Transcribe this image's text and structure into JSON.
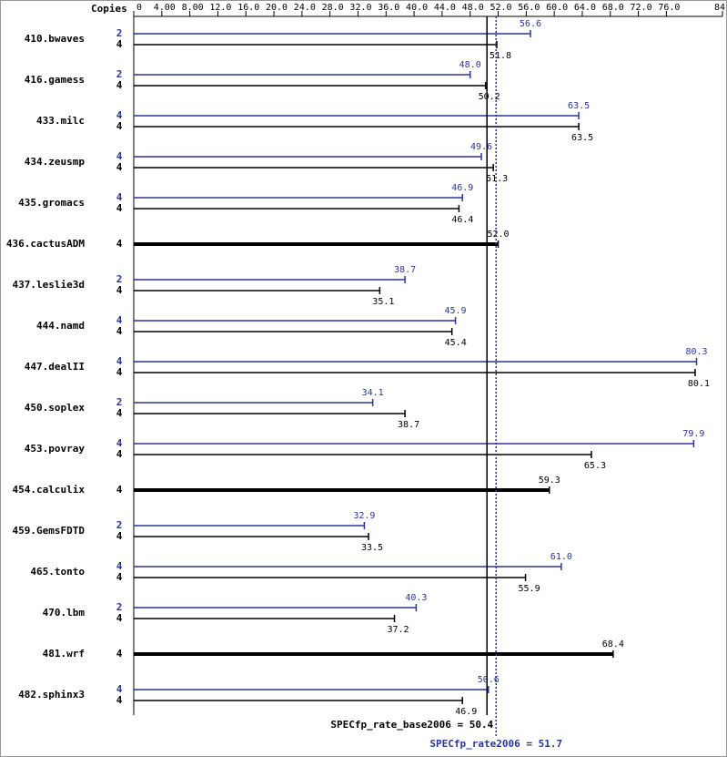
{
  "chart_data": {
    "type": "bar",
    "axis_label": "Copies",
    "xlim": [
      0,
      84
    ],
    "xticks": [
      0,
      {
        "value": 4,
        "label": "4.00"
      },
      {
        "value": 8,
        "label": "8.00"
      },
      {
        "value": 12,
        "label": "12.0"
      },
      {
        "value": 16,
        "label": "16.0"
      },
      {
        "value": 20,
        "label": "20.0"
      },
      {
        "value": 24,
        "label": "24.0"
      },
      {
        "value": 28,
        "label": "28.0"
      },
      {
        "value": 32,
        "label": "32.0"
      },
      {
        "value": 36,
        "label": "36.0"
      },
      {
        "value": 40,
        "label": "40.0"
      },
      {
        "value": 44,
        "label": "44.0"
      },
      {
        "value": 48,
        "label": "48.0"
      },
      {
        "value": 52,
        "label": "52.0"
      },
      {
        "value": 56,
        "label": "56.0"
      },
      {
        "value": 60,
        "label": "60.0"
      },
      {
        "value": 64,
        "label": "64.0"
      },
      {
        "value": 68,
        "label": "68.0"
      },
      {
        "value": 72,
        "label": "72.0"
      },
      {
        "value": 76,
        "label": "76.0"
      },
      {
        "value": 84,
        "label": "84.0"
      }
    ],
    "categories": [
      "410.bwaves",
      "416.gamess",
      "433.milc",
      "434.zeusmp",
      "435.gromacs",
      "436.cactusADM",
      "437.leslie3d",
      "444.namd",
      "447.dealII",
      "450.soplex",
      "453.povray",
      "454.calculix",
      "459.GemsFDTD",
      "465.tonto",
      "470.lbm",
      "481.wrf",
      "482.sphinx3"
    ],
    "series": [
      {
        "color": "#2b3596",
        "copies": [
          2,
          2,
          4,
          4,
          4,
          null,
          2,
          4,
          4,
          2,
          4,
          null,
          2,
          4,
          2,
          null,
          4
        ],
        "values": [
          56.6,
          48.0,
          63.5,
          49.6,
          46.9,
          null,
          38.7,
          45.9,
          80.3,
          34.1,
          79.9,
          null,
          32.9,
          61.0,
          40.3,
          null,
          50.6
        ],
        "value_labels": [
          "56.6",
          "48.0",
          "63.5",
          "49.6",
          "46.9",
          null,
          "38.7",
          "45.9",
          "80.3",
          "34.1",
          "79.9",
          null,
          "32.9",
          "61.0",
          "40.3",
          null,
          "50.6"
        ]
      },
      {
        "color": "#000000",
        "copies": [
          4,
          4,
          4,
          4,
          4,
          4,
          4,
          4,
          4,
          4,
          4,
          4,
          4,
          4,
          4,
          4,
          4
        ],
        "values": [
          51.8,
          50.2,
          63.5,
          51.3,
          46.4,
          52.0,
          35.1,
          45.4,
          80.1,
          38.7,
          65.3,
          59.3,
          33.5,
          55.9,
          37.2,
          68.4,
          46.9
        ],
        "value_labels": [
          "51.8",
          "50.2",
          "63.5",
          "51.3",
          "46.4",
          "52.0",
          "35.1",
          "45.4",
          "80.1",
          "38.7",
          "65.3",
          "59.3",
          "33.5",
          "55.9",
          "37.2",
          "68.4",
          "46.9"
        ]
      }
    ],
    "reference_lines": [
      {
        "label": "SPECfp_rate_base2006 = 50.4",
        "value": 50.4,
        "color": "#000000"
      },
      {
        "label": "SPECfp_rate2006 = 51.7",
        "value": 51.7,
        "color": "#2b3596"
      }
    ]
  }
}
